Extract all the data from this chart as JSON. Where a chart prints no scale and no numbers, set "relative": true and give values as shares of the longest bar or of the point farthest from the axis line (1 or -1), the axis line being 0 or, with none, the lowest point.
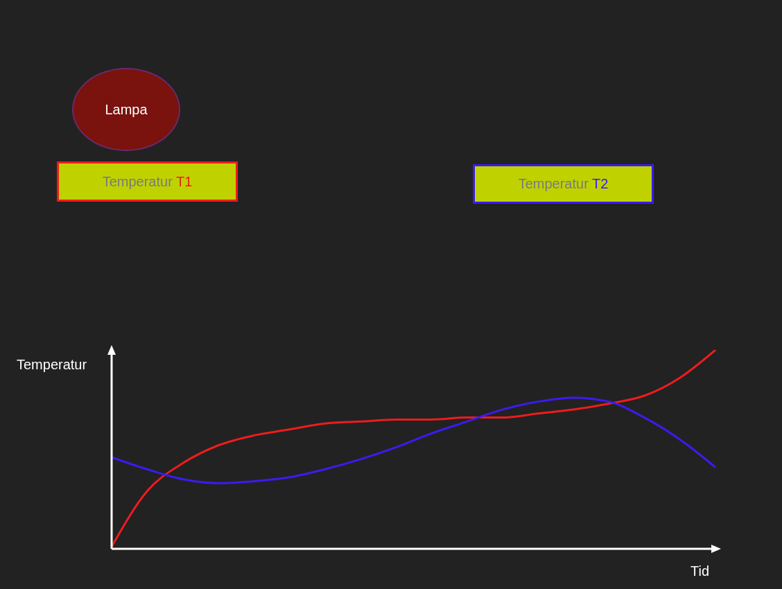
{
  "chart_data": {
    "type": "line",
    "relative": true,
    "xlabel": "Tid",
    "ylabel": "Temperatur",
    "annotations": [
      "Lampa",
      "Temperatur T1",
      "Temperatur T2"
    ],
    "categories": [
      null,
      null,
      null,
      null,
      null,
      null,
      null,
      null,
      null,
      null,
      null,
      null,
      null,
      null,
      null,
      null,
      null,
      null
    ],
    "series": [
      {
        "color": "#ee1c1c",
        "values": [
          0.01,
          0.29,
          0.43,
          0.52,
          0.57,
          0.6,
          0.63,
          0.64,
          0.65,
          0.65,
          0.66,
          0.66,
          0.68,
          0.7,
          0.73,
          0.77,
          0.86,
          1
        ]
      },
      {
        "color": "#3a1cf0",
        "values": [
          0.46,
          0.4,
          0.35,
          0.33,
          0.34,
          0.36,
          0.4,
          0.45,
          0.51,
          0.58,
          0.64,
          0.7,
          0.74,
          0.76,
          0.74,
          0.66,
          0.55,
          0.41
        ]
      }
    ],
    "grid": false,
    "legend": false,
    "marker": "none",
    "line_style": "solid"
  }
}
